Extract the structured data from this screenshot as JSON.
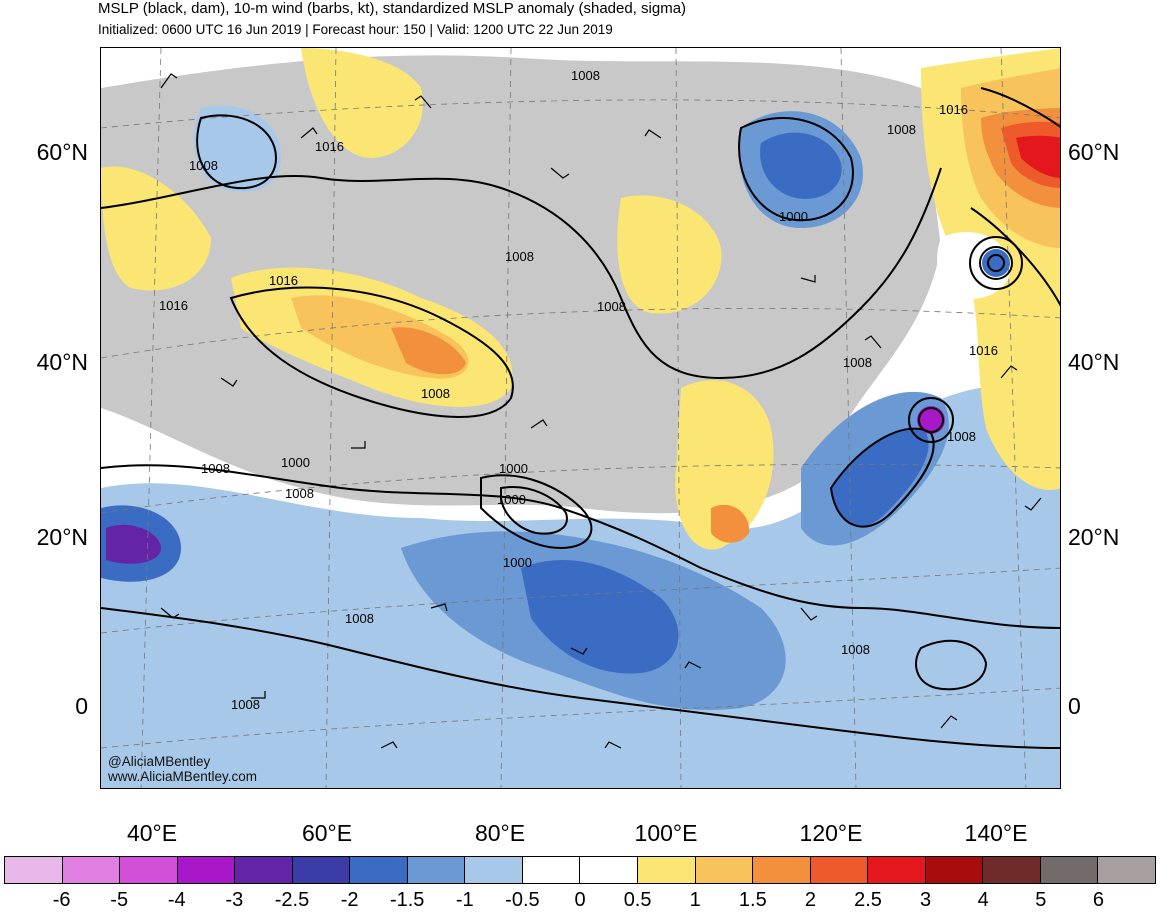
{
  "header": {
    "title": "MSLP (black, dam), 10-m wind (barbs, kt), standardized MSLP anomaly (shaded, sigma)",
    "subtitle": "Initialized: 0600 UTC 16 Jun 2019 | Forecast hour: 150 | Valid: 1200 UTC 22 Jun 2019"
  },
  "axes": {
    "lat_labels": [
      "60°N",
      "40°N",
      "20°N",
      "0"
    ],
    "lon_labels": [
      "40°E",
      "60°E",
      "80°E",
      "100°E",
      "120°E",
      "140°E"
    ]
  },
  "contour_labels": [
    "1008",
    "1016",
    "1008",
    "1016",
    "1008",
    "1016",
    "1000",
    "1008",
    "1008",
    "1016",
    "1008",
    "1016",
    "1008",
    "1008",
    "1000",
    "1000",
    "1008",
    "1000",
    "1008",
    "1000",
    "1008",
    "1008",
    "1008"
  ],
  "credit": {
    "handle": "@AliciaMBentley",
    "site": "www.AliciaMBentley.com"
  },
  "colorbar": {
    "labels": [
      "-6",
      "-5",
      "-4",
      "-3",
      "-2.5",
      "-2",
      "-1.5",
      "-1",
      "-0.5",
      "0",
      "0.5",
      "1",
      "1.5",
      "2",
      "2.5",
      "3",
      "4",
      "5",
      "6"
    ],
    "colors": [
      "#e8b8e8",
      "#e27fe2",
      "#d24fd8",
      "#a918c8",
      "#6424a8",
      "#3c3ca8",
      "#3b6cc4",
      "#6a99d4",
      "#a7c8e8",
      "#ffffff",
      "#ffffff",
      "#fbe673",
      "#f7c35a",
      "#f2903e",
      "#ee5a2c",
      "#e4181c",
      "#a80c0c",
      "#6f2a2a",
      "#736a6a",
      "#a8a0a0"
    ]
  }
}
